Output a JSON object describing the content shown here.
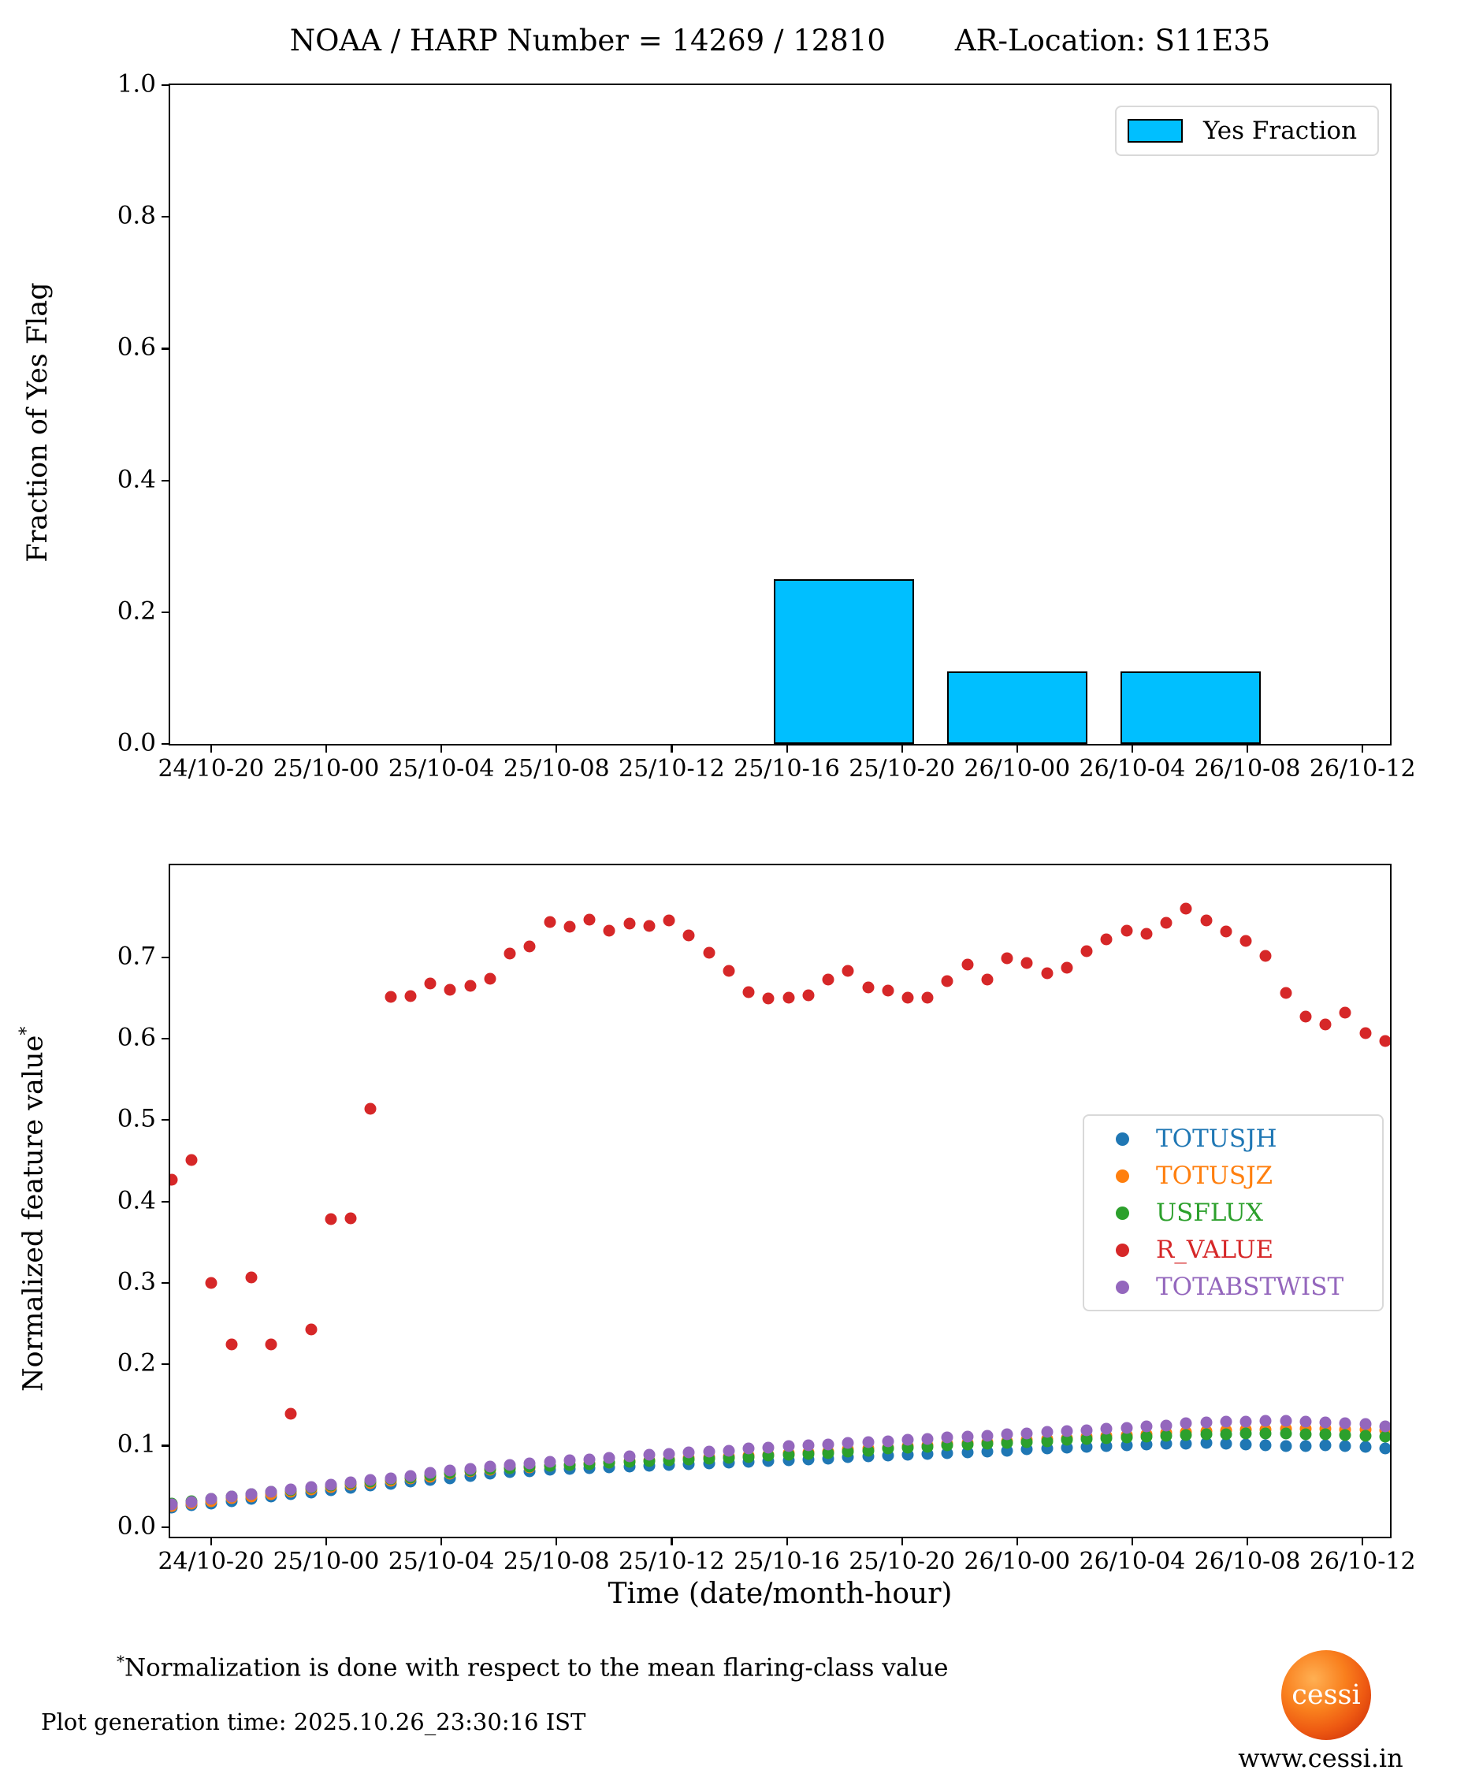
{
  "title": {
    "left": "NOAA / HARP Number = 14269 / 12810",
    "right": "AR-Location: S11E35"
  },
  "footer": {
    "footnote_sup": "*",
    "footnote": "Normalization is done with respect to the mean flaring-class value",
    "generation_time": "Plot generation time: 2025.10.26_23:30:16 IST",
    "logo_text": "cessi",
    "site_url": "www.cessi.in"
  },
  "chart_data": [
    {
      "type": "bar",
      "title": "",
      "ylabel": "Fraction of Yes Flag",
      "ylim": [
        0.0,
        1.0
      ],
      "grid": false,
      "legend_position": "upper right",
      "legend": {
        "label": "Yes Fraction",
        "color": "#00BFFF",
        "edge_color": "#000000"
      },
      "y_tick_labels": [
        "0.0",
        "0.2",
        "0.4",
        "0.6",
        "0.8",
        "1.0"
      ],
      "x_tick_labels": [
        "24/10-20",
        "25/10-00",
        "25/10-04",
        "25/10-08",
        "25/10-12",
        "25/10-16",
        "25/10-20",
        "26/10-00",
        "26/10-04",
        "26/10-08",
        "26/10-12"
      ],
      "x_tick_start_frac": 0.0335,
      "x_tick_step_frac": 0.0944,
      "bar_color": "#00BFFF",
      "bars": [
        {
          "bin_center": "25/10-18",
          "value": 0.25,
          "center_frac": 0.5525
        },
        {
          "bin_center": "26/10-00",
          "value": 0.11,
          "center_frac": 0.6946
        },
        {
          "bin_center": "26/10-06",
          "value": 0.11,
          "center_frac": 0.8367
        }
      ],
      "bar_width_frac": 0.1147
    },
    {
      "type": "scatter",
      "title": "",
      "ylabel": "Normalized feature value",
      "ylabel_sup": "*",
      "xlabel": "Time (date/month-hour)",
      "ylim": [
        -0.012,
        0.813
      ],
      "grid": false,
      "legend_position": "center right",
      "y_tick_labels": [
        "0.0",
        "0.1",
        "0.2",
        "0.3",
        "0.4",
        "0.5",
        "0.6",
        "0.7"
      ],
      "x_tick_labels": [
        "24/10-20",
        "25/10-00",
        "25/10-04",
        "25/10-08",
        "25/10-12",
        "25/10-16",
        "25/10-20",
        "26/10-00",
        "26/10-04",
        "26/10-08",
        "26/10-12"
      ],
      "x_tick_start_frac": 0.0335,
      "x_tick_step_frac": 0.0944,
      "x_start_frac": 0.0013,
      "x_end_frac": 0.996,
      "series": [
        {
          "name": "TOTUSJH",
          "color": "#1f77b4",
          "values": [
            0.024,
            0.027,
            0.029,
            0.032,
            0.034,
            0.037,
            0.04,
            0.042,
            0.045,
            0.048,
            0.051,
            0.053,
            0.056,
            0.058,
            0.06,
            0.063,
            0.065,
            0.067,
            0.068,
            0.07,
            0.071,
            0.072,
            0.073,
            0.074,
            0.075,
            0.076,
            0.077,
            0.078,
            0.079,
            0.08,
            0.081,
            0.082,
            0.083,
            0.084,
            0.086,
            0.087,
            0.088,
            0.089,
            0.09,
            0.091,
            0.092,
            0.093,
            0.094,
            0.095,
            0.096,
            0.097,
            0.098,
            0.099,
            0.1,
            0.101,
            0.102,
            0.102,
            0.103,
            0.102,
            0.101,
            0.1,
            0.099,
            0.099,
            0.1,
            0.099,
            0.098,
            0.096
          ]
        },
        {
          "name": "TOTUSJZ",
          "color": "#ff7f0e",
          "values": [
            0.026,
            0.029,
            0.032,
            0.035,
            0.037,
            0.04,
            0.043,
            0.046,
            0.049,
            0.052,
            0.054,
            0.057,
            0.06,
            0.062,
            0.065,
            0.068,
            0.07,
            0.072,
            0.073,
            0.075,
            0.076,
            0.078,
            0.079,
            0.081,
            0.082,
            0.083,
            0.085,
            0.086,
            0.087,
            0.088,
            0.089,
            0.091,
            0.092,
            0.093,
            0.095,
            0.096,
            0.097,
            0.099,
            0.1,
            0.102,
            0.103,
            0.104,
            0.105,
            0.107,
            0.108,
            0.109,
            0.111,
            0.112,
            0.113,
            0.114,
            0.116,
            0.117,
            0.118,
            0.119,
            0.12,
            0.12,
            0.121,
            0.121,
            0.121,
            0.12,
            0.12,
            0.119
          ]
        },
        {
          "name": "USFLUX",
          "color": "#2ca02c",
          "values": [
            0.029,
            0.032,
            0.034,
            0.037,
            0.04,
            0.043,
            0.045,
            0.048,
            0.051,
            0.054,
            0.056,
            0.059,
            0.061,
            0.064,
            0.066,
            0.069,
            0.071,
            0.072,
            0.074,
            0.075,
            0.076,
            0.077,
            0.079,
            0.08,
            0.081,
            0.082,
            0.083,
            0.084,
            0.085,
            0.086,
            0.088,
            0.089,
            0.09,
            0.091,
            0.093,
            0.094,
            0.096,
            0.097,
            0.098,
            0.1,
            0.101,
            0.102,
            0.103,
            0.104,
            0.105,
            0.107,
            0.108,
            0.109,
            0.11,
            0.111,
            0.112,
            0.113,
            0.114,
            0.114,
            0.115,
            0.115,
            0.115,
            0.114,
            0.114,
            0.113,
            0.112,
            0.111
          ]
        },
        {
          "name": "R_VALUE",
          "color": "#d62728",
          "values": [
            0.427,
            0.451,
            0.3,
            0.224,
            0.307,
            0.224,
            0.139,
            0.243,
            0.378,
            0.379,
            0.514,
            0.651,
            0.652,
            0.668,
            0.66,
            0.665,
            0.674,
            0.705,
            0.713,
            0.743,
            0.737,
            0.746,
            0.733,
            0.741,
            0.738,
            0.745,
            0.727,
            0.706,
            0.683,
            0.657,
            0.649,
            0.65,
            0.653,
            0.673,
            0.683,
            0.663,
            0.659,
            0.65,
            0.65,
            0.671,
            0.691,
            0.673,
            0.699,
            0.693,
            0.68,
            0.687,
            0.707,
            0.722,
            0.733,
            0.729,
            0.742,
            0.76,
            0.745,
            0.732,
            0.72,
            0.702,
            0.656,
            0.627,
            0.617,
            0.632,
            0.607,
            0.597
          ]
        },
        {
          "name": "TOTABSTWIST",
          "color": "#9467bd",
          "values": [
            0.028,
            0.031,
            0.034,
            0.037,
            0.04,
            0.043,
            0.046,
            0.049,
            0.052,
            0.055,
            0.058,
            0.06,
            0.063,
            0.066,
            0.069,
            0.071,
            0.074,
            0.076,
            0.078,
            0.08,
            0.082,
            0.083,
            0.085,
            0.087,
            0.089,
            0.09,
            0.092,
            0.093,
            0.094,
            0.096,
            0.097,
            0.099,
            0.1,
            0.101,
            0.103,
            0.104,
            0.105,
            0.107,
            0.108,
            0.11,
            0.111,
            0.112,
            0.114,
            0.115,
            0.117,
            0.118,
            0.119,
            0.121,
            0.122,
            0.124,
            0.125,
            0.127,
            0.128,
            0.129,
            0.129,
            0.13,
            0.13,
            0.129,
            0.128,
            0.127,
            0.126,
            0.124
          ]
        }
      ]
    }
  ]
}
